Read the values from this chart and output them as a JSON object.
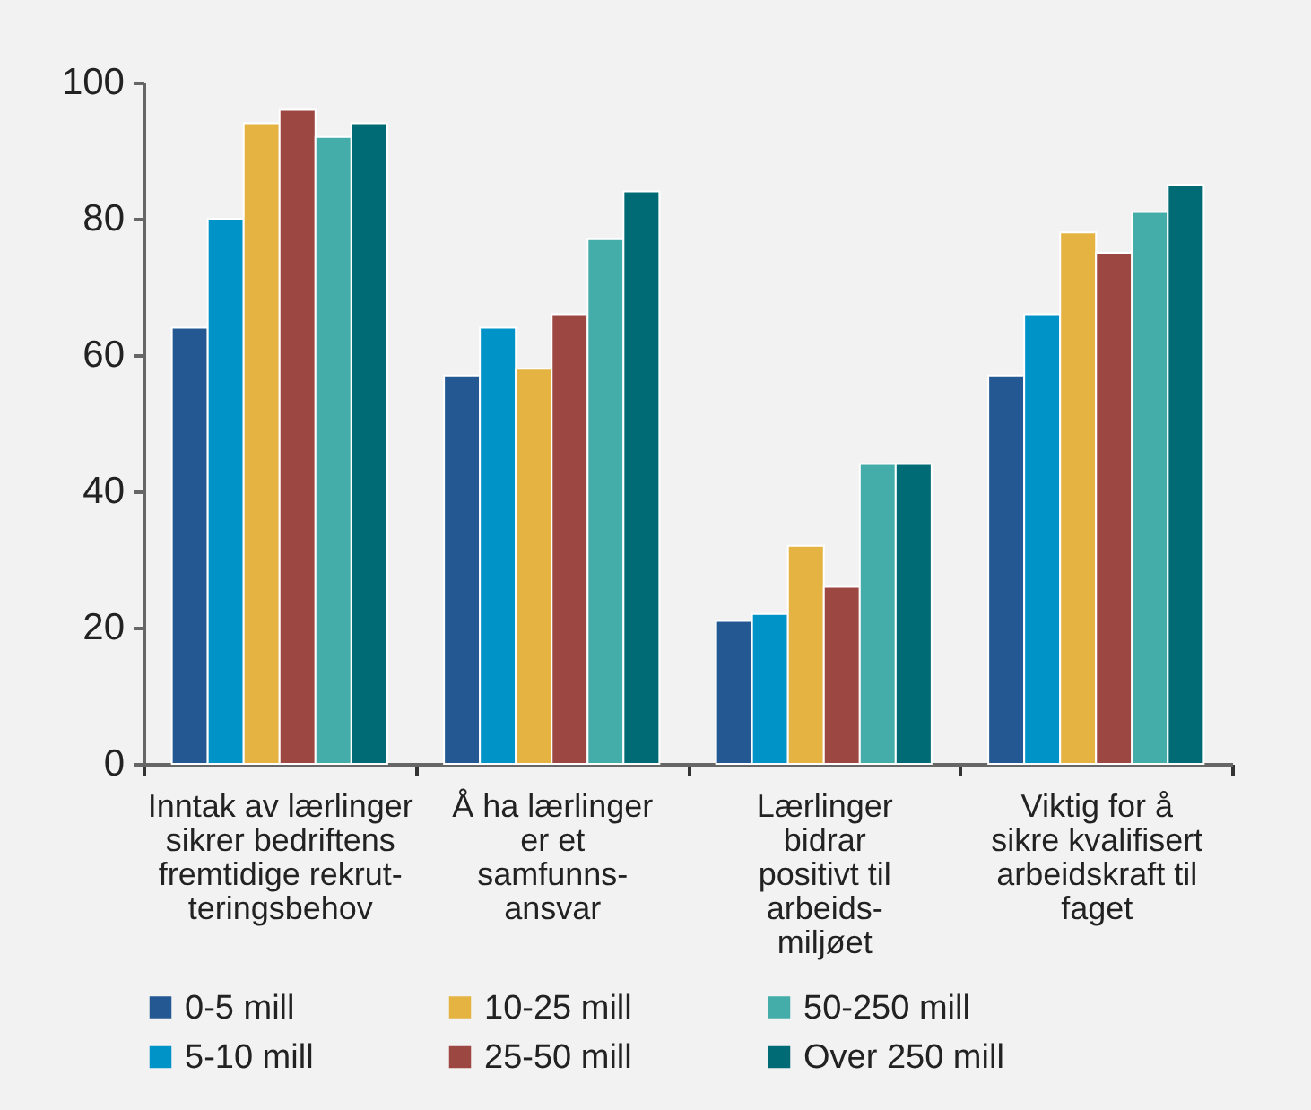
{
  "chart_data": {
    "type": "bar",
    "categories": [
      "Inntak av lærlinger\nsikrer bedriftens\nfremtidige rekrut-\nteringsbehov",
      "Å ha lærlinger\ner et\nsamfunns-\nansvar",
      "Lærlinger\nbidrar\npositivt til\narbeids-\nmiljøet",
      "Viktig for å\nsikre kvalifisert\narbeidskraft til\nfaget"
    ],
    "series": [
      {
        "name": "0-5 mill",
        "color": "#235892",
        "values": [
          64,
          57,
          21,
          57
        ]
      },
      {
        "name": "5-10 mill",
        "color": "#0093c8",
        "values": [
          80,
          64,
          22,
          66
        ]
      },
      {
        "name": "10-25 mill",
        "color": "#e5b342",
        "values": [
          94,
          58,
          32,
          78
        ]
      },
      {
        "name": "25-50 mill",
        "color": "#9c4742",
        "values": [
          96,
          66,
          26,
          75
        ]
      },
      {
        "name": "50-250 mill",
        "color": "#45ada9",
        "values": [
          92,
          77,
          44,
          81
        ]
      },
      {
        "name": "Over 250 mill",
        "color": "#006b74",
        "values": [
          94,
          84,
          44,
          85
        ]
      }
    ],
    "ylim": [
      0,
      100
    ],
    "yticks": [
      0,
      20,
      40,
      60,
      80,
      100
    ],
    "legend": "bottom"
  }
}
